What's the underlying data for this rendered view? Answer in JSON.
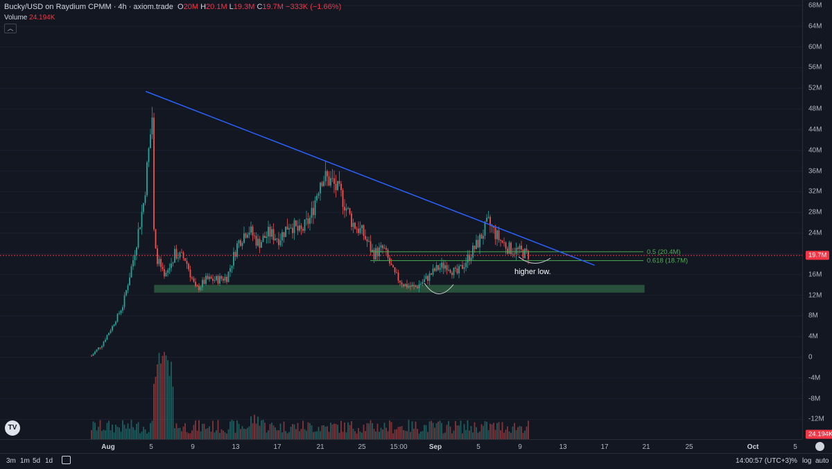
{
  "header": {
    "title": "Bucky/USD on Raydium CPMM · 4h · axiom.trade",
    "open_label": "O",
    "open": "20M",
    "high_label": "H",
    "high": "20.1M",
    "low_label": "L",
    "low": "19.3M",
    "close_label": "C",
    "close": "19.7M",
    "change": "−333K (−1.66%)"
  },
  "volume_legend": {
    "label": "Volume",
    "value": "24.194K"
  },
  "colors": {
    "up": "#26a69a",
    "down": "#ef5350",
    "trendline": "#2962ff",
    "fib": "#4caf50",
    "zone": "#2e5a3e",
    "background": "#131722",
    "price_badge": "#f23645"
  },
  "chart_data": {
    "type": "candlestick",
    "symbol": "Bucky/USD",
    "exchange": "Raydium CPMM",
    "interval": "4h",
    "ylim": [
      -14000000,
      70000000
    ],
    "y_ticks": [
      "68M",
      "64M",
      "60M",
      "56M",
      "52M",
      "48M",
      "44M",
      "40M",
      "36M",
      "32M",
      "28M",
      "24M",
      "20M",
      "16M",
      "12M",
      "8M",
      "4M",
      "0",
      "-4M",
      "-8M",
      "-12M"
    ],
    "x_ticks": [
      "Aug",
      "5",
      "9",
      "13",
      "17",
      "21",
      "25",
      "15:00",
      "Sep",
      "5",
      "9",
      "13",
      "17",
      "21",
      "25",
      "Oct",
      "5"
    ],
    "x_ticks_bold": [
      "Aug",
      "Sep",
      "Oct"
    ],
    "last_price": "19.7M",
    "last_volume": "24.194K",
    "price_path": [
      [
        "Aug 1",
        0.3
      ],
      [
        "Aug 2",
        2.5
      ],
      [
        "Aug 3",
        6
      ],
      [
        "Aug 4",
        10
      ],
      [
        "Aug 5",
        19
      ],
      [
        "Aug 6",
        30
      ],
      [
        "Aug 6 20:00",
        47
      ],
      [
        "Aug 7",
        21
      ],
      [
        "Aug 8",
        15
      ],
      [
        "Aug 9",
        20
      ],
      [
        "Aug 10",
        19
      ],
      [
        "Aug 11",
        13
      ],
      [
        "Aug 12",
        15
      ],
      [
        "Aug 13",
        15
      ],
      [
        "Aug 14",
        15.5
      ],
      [
        "Aug 15",
        22
      ],
      [
        "Aug 16",
        25
      ],
      [
        "Aug 17",
        22
      ],
      [
        "Aug 18",
        24
      ],
      [
        "Aug 19",
        23
      ],
      [
        "Aug 20",
        26
      ],
      [
        "Aug 21",
        24
      ],
      [
        "Aug 22",
        27
      ],
      [
        "Aug 23",
        35
      ],
      [
        "Aug 24",
        34
      ],
      [
        "Aug 25",
        31
      ],
      [
        "Aug 26",
        26
      ],
      [
        "Aug 27",
        24
      ],
      [
        "Aug 28",
        20
      ],
      [
        "Aug 29",
        21
      ],
      [
        "Aug 30",
        16
      ],
      [
        "Aug 31",
        14
      ],
      [
        "Sep 1",
        13.5
      ],
      [
        "Sep 2",
        15
      ],
      [
        "Sep 3",
        17
      ],
      [
        "Sep 4",
        18
      ],
      [
        "Sep 5",
        16
      ],
      [
        "Sep 6",
        19
      ],
      [
        "Sep 7",
        22
      ],
      [
        "Sep 8",
        26
      ],
      [
        "Sep 9",
        23
      ],
      [
        "Sep 10",
        21
      ],
      [
        "Sep 11",
        20.5
      ],
      [
        "Sep 12",
        19.7
      ]
    ],
    "trendline": {
      "from": [
        "Aug 5",
        51
      ],
      "to": [
        "Sep 19",
        17.8
      ]
    },
    "support_zone": {
      "from": "Aug 7",
      "to": "Sep 23",
      "low": 12.5,
      "high": 14
    },
    "fib_levels": [
      {
        "label": "0.5 (20.4M)",
        "value": 20.4
      },
      {
        "label": "0.618 (18.7M)",
        "value": 18.7
      }
    ],
    "annotation": "higher low.",
    "volume_series_label": "Volume"
  },
  "bottom_bar": {
    "ranges": [
      "3m",
      "1m",
      "5d",
      "1d"
    ],
    "clock": "14:00:57 (UTC+3)",
    "percent": "%",
    "log": "log",
    "auto": "auto"
  },
  "logo_text": "TV",
  "collapse_icon": "chevron-up-icon"
}
